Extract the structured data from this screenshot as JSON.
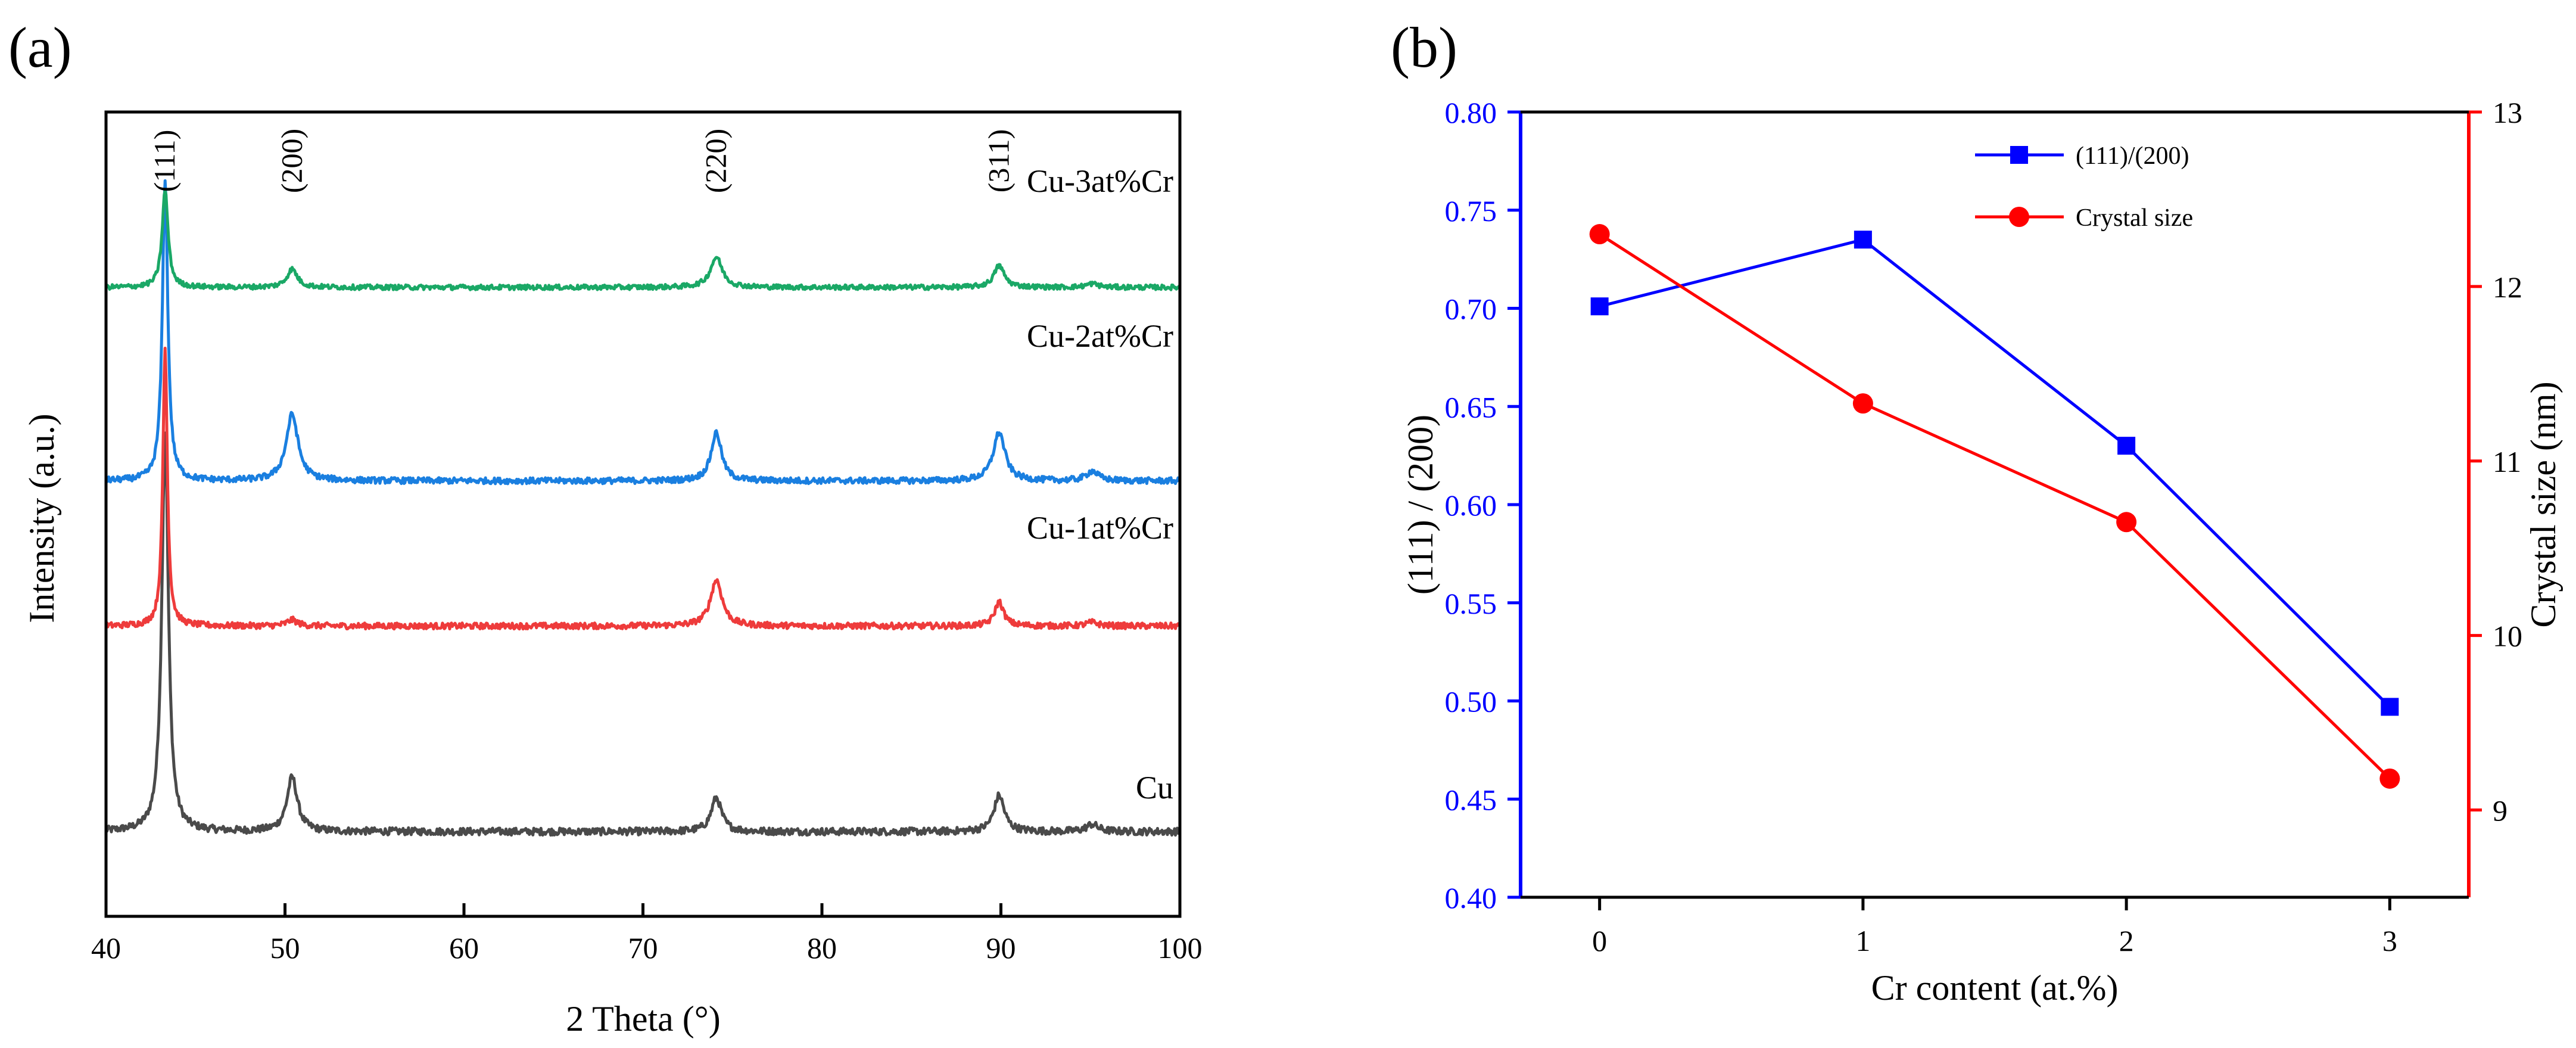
{
  "colors": {
    "cu": "#4a4a4a",
    "cu1": "#ee3b3b",
    "cu2": "#1a7fe0",
    "cu3": "#1aa866",
    "ratio": "#0000ff",
    "size": "#ff0000",
    "axis": "#000000"
  },
  "chart_data": [
    {
      "type": "line",
      "panel_label": "(a)",
      "xlabel": "2 Theta (°)",
      "ylabel": "Intensity (a.u.)",
      "xlim": [
        40,
        100
      ],
      "xticks": [
        "40",
        "50",
        "60",
        "70",
        "80",
        "90",
        "100"
      ],
      "peak_labels": [
        {
          "text": "(111)",
          "x": 43.3
        },
        {
          "text": "(200)",
          "x": 50.4
        },
        {
          "text": "(220)",
          "x": 74.1
        },
        {
          "text": "(311)",
          "x": 89.9
        }
      ],
      "series": [
        {
          "name": "Cu",
          "color_key": "cu",
          "baseline": 0.0,
          "noise": 0.06,
          "peaks": [
            [
              43.3,
              3.3,
              0.22
            ],
            [
              50.4,
              0.45,
              0.35
            ],
            [
              74.1,
              0.28,
              0.35
            ],
            [
              89.9,
              0.3,
              0.35
            ],
            [
              95.1,
              0.06,
              0.4
            ]
          ]
        },
        {
          "name": "Cu-1at%Cr",
          "color_key": "cu1",
          "baseline": 1.7,
          "noise": 0.05,
          "peaks": [
            [
              43.3,
              2.3,
              0.15
            ],
            [
              50.4,
              0.05,
              0.35
            ],
            [
              74.1,
              0.38,
              0.4
            ],
            [
              89.9,
              0.2,
              0.3
            ],
            [
              95.1,
              0.03,
              0.4
            ]
          ]
        },
        {
          "name": "Cu-2at%Cr",
          "color_key": "cu2",
          "baseline": 2.9,
          "noise": 0.05,
          "peaks": [
            [
              43.3,
              2.5,
              0.18
            ],
            [
              50.4,
              0.55,
              0.4
            ],
            [
              74.1,
              0.4,
              0.35
            ],
            [
              89.9,
              0.4,
              0.4
            ],
            [
              95.1,
              0.08,
              0.4
            ]
          ]
        },
        {
          "name": "Cu-3at%Cr",
          "color_key": "cu3",
          "baseline": 4.5,
          "noise": 0.04,
          "peaks": [
            [
              43.3,
              0.8,
              0.2
            ],
            [
              50.4,
              0.15,
              0.35
            ],
            [
              74.1,
              0.25,
              0.4
            ],
            [
              89.9,
              0.18,
              0.35
            ],
            [
              95.1,
              0.03,
              0.4
            ]
          ]
        }
      ],
      "ylim": [
        -0.7,
        5.95
      ]
    },
    {
      "type": "line",
      "panel_label": "(b)",
      "xlabel": "Cr content (at.%)",
      "ylabel_left": "(111) / (200)",
      "ylabel_right": "Crystal size (nm)",
      "categories": [
        "0",
        "1",
        "2",
        "3"
      ],
      "x": [
        0,
        1,
        2,
        3
      ],
      "xlim": [
        -0.3,
        3.3
      ],
      "ylim_left": [
        0.4,
        0.8
      ],
      "yticks_left": [
        "0.40",
        "0.45",
        "0.50",
        "0.55",
        "0.60",
        "0.65",
        "0.70",
        "0.75",
        "0.80"
      ],
      "ylim_right": [
        8.5,
        13
      ],
      "yticks_right": [
        "9",
        "10",
        "11",
        "12",
        "13"
      ],
      "series": [
        {
          "name": "(111)/(200)",
          "axis": "left",
          "marker": "square",
          "color_key": "ratio",
          "values": [
            0.701,
            0.735,
            0.63,
            0.497
          ]
        },
        {
          "name": "Crystal size",
          "axis": "right",
          "marker": "circle",
          "color_key": "size",
          "values": [
            12.3,
            11.33,
            10.65,
            9.18
          ]
        }
      ],
      "legend_position": "top-right"
    }
  ]
}
